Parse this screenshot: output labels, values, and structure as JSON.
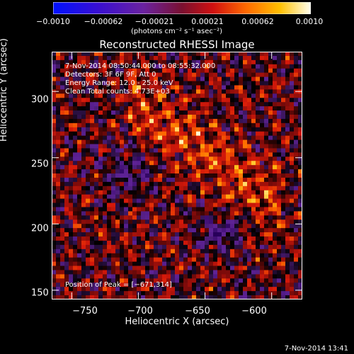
{
  "colorbar": {
    "ticks": [
      "−0.0010",
      "−0.00062",
      "−0.00021",
      "0.00021",
      "0.00062",
      "0.0010"
    ],
    "units": "(photons cm⁻² s⁻¹ asec⁻²)"
  },
  "title": "Reconstructed RHESSI Image",
  "info": {
    "time": "7-Nov-2014 08:50:44.000 to 08:55:32.000",
    "detectors": "Detectors: 3F 6F 9F, Att 0",
    "energy": "Energy Range: 12.0 - 25.0 keV",
    "clean": "Clean    Total counts: 4.73E+03"
  },
  "peak": "Position of Peak = [−671,314]",
  "axes": {
    "xlabel": "Heliocentric X (arcsec)",
    "ylabel": "Heliocentric Y (arcsec)",
    "xticks": [
      "−750",
      "−700",
      "−650",
      "−600"
    ],
    "yticks": [
      "300",
      "250",
      "200",
      "150"
    ],
    "xrange": [
      -765,
      -577
    ],
    "yrange": [
      143,
      330
    ]
  },
  "timestamp": "7-Nov-2014 13:41"
}
